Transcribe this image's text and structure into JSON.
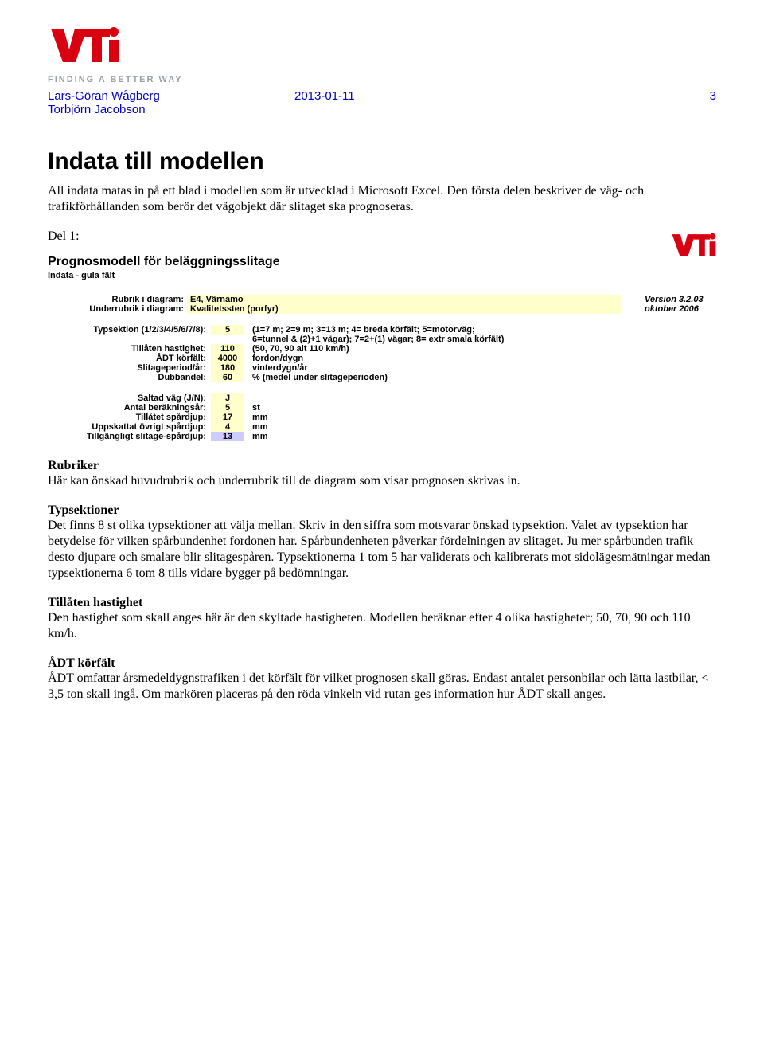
{
  "header": {
    "tagline": "FINDING A BETTER WAY",
    "author1": "Lars-Göran Wågberg",
    "author2": "Torbjörn Jacobson",
    "date": "2013-01-11",
    "page": "3",
    "logo_color": "#d90012",
    "author_color": "#0000cc"
  },
  "title": "Indata till modellen",
  "intro": "All indata matas in på ett blad i modellen som är utvecklad i Microsoft Excel. Den första delen beskriver de väg- och trafikförhållanden som berör det vägobjekt där slitaget ska prognoseras.",
  "del_label": "Del 1:",
  "model": {
    "title": "Prognosmodell för beläggningsslitage",
    "subtitle": "Indata - gula fält",
    "rubrik_label": "Rubrik i diagram:",
    "rubrik_value": "E4, Värnamo",
    "underrubrik_label": "Underrubrik i diagram:",
    "underrubrik_value": "Kvalitetssten (porfyr)",
    "version": "Version 3.2.03",
    "version_date": "oktober 2006",
    "rows1": [
      {
        "label": "Typsektion (1/2/3/4/5/6/7/8):",
        "value": "5",
        "desc": "(1=7 m; 2=9 m; 3=13 m; 4= breda körfält; 5=motorväg;"
      },
      {
        "label": "",
        "value": "",
        "desc": "6=tunnel & (2)+1 vägar); 7=2+(1) vägar; 8= extr smala körfält)"
      },
      {
        "label": "Tillåten hastighet:",
        "value": "110",
        "desc": "(50, 70, 90 alt 110 km/h)"
      },
      {
        "label": "ÅDT körfält:",
        "value": "4000",
        "desc": "fordon/dygn"
      },
      {
        "label": "Slitageperiod/år:",
        "value": "180",
        "desc": "vinterdygn/år"
      },
      {
        "label": "Dubbandel:",
        "value": "60",
        "desc": "% (medel under slitageperioden)"
      }
    ],
    "rows2": [
      {
        "label": "Saltad väg (J/N):",
        "value": "J",
        "desc": "",
        "style": "yellow"
      },
      {
        "label": "Antal beräkningsår:",
        "value": "5",
        "desc": "st",
        "style": "yellow"
      },
      {
        "label": "Tillåtet spårdjup:",
        "value": "17",
        "desc": "mm",
        "style": "yellow"
      },
      {
        "label": "Uppskattat övrigt spårdjup:",
        "value": "4",
        "desc": "mm",
        "style": "yellow"
      },
      {
        "label": "Tillgängligt slitage-spårdjup:",
        "value": "13",
        "desc": "mm",
        "style": "purple"
      }
    ],
    "highlight_yellow": "#ffffcc",
    "highlight_purple": "#ccccff"
  },
  "sections": [
    {
      "heading": "Rubriker",
      "body": "Här kan önskad huvudrubrik och underrubrik till de diagram som visar prognosen skrivas in."
    },
    {
      "heading": "Typsektioner",
      "body": "Det finns 8 st olika typsektioner att välja mellan. Skriv in den siffra som motsvarar önskad typsektion. Valet av typsektion har betydelse för vilken spårbundenhet fordonen har. Spårbundenheten påverkar fördelningen av slitaget. Ju mer spårbunden trafik desto djupare och smalare blir slitagespåren. Typsektionerna 1 tom 5 har validerats och kalibrerats mot sidolägesmätningar medan typsektionerna 6 tom 8 tills vidare bygger på bedömningar."
    },
    {
      "heading": "Tillåten hastighet",
      "body": "Den hastighet som skall anges här är den skyltade hastigheten. Modellen beräknar efter 4 olika hastigheter; 50, 70, 90 och 110 km/h."
    },
    {
      "heading": "ÅDT körfält",
      "body": "ÅDT omfattar årsmedeldygnstrafiken i det körfält för vilket prognosen skall göras. Endast antalet personbilar och lätta lastbilar, < 3,5 ton skall ingå. Om markören placeras på den röda vinkeln vid rutan ges information hur ÅDT skall anges."
    }
  ]
}
